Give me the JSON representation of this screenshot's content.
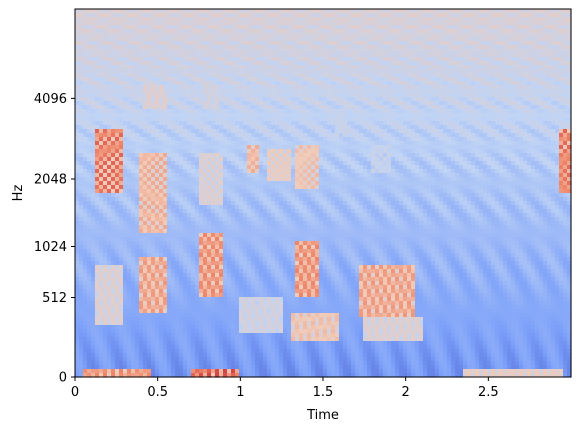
{
  "chart_data": {
    "type": "heatmap",
    "title": "",
    "xlabel": "Time",
    "ylabel": "Hz",
    "xlim": [
      0,
      3.0
    ],
    "y_scale": "mel",
    "ylim": [
      0,
      8192
    ],
    "x_ticks": [
      {
        "value": 0,
        "label": "0"
      },
      {
        "value": 0.5,
        "label": "0.5"
      },
      {
        "value": 1,
        "label": "1"
      },
      {
        "value": 1.5,
        "label": "1.5"
      },
      {
        "value": 2,
        "label": "2"
      },
      {
        "value": 2.5,
        "label": "2.5"
      }
    ],
    "y_ticks": [
      {
        "value": 0,
        "label": "0"
      },
      {
        "value": 512,
        "label": "512"
      },
      {
        "value": 1024,
        "label": "1024"
      },
      {
        "value": 2048,
        "label": "2048"
      },
      {
        "value": 4096,
        "label": "4096"
      }
    ],
    "colormap": [
      "#3b4cc0",
      "#7b9ff9",
      "#c0d4f5",
      "#f2cbb7",
      "#ee8468",
      "#b40426"
    ],
    "grid": false,
    "legend": "none",
    "energy_blobs": [
      {
        "t0": 0.12,
        "t1": 0.3,
        "f0": 1800,
        "f1": 3200,
        "level": 0.85
      },
      {
        "t0": 0.12,
        "t1": 0.3,
        "f0": 300,
        "f1": 800,
        "level": 0.55
      },
      {
        "t0": 0.38,
        "t1": 0.55,
        "f0": 1200,
        "f1": 2600,
        "level": 0.7
      },
      {
        "t0": 0.38,
        "t1": 0.55,
        "f0": 400,
        "f1": 900,
        "level": 0.75
      },
      {
        "t0": 0.42,
        "t1": 0.55,
        "f0": 3800,
        "f1": 4600,
        "level": 0.55
      },
      {
        "t0": 0.75,
        "t1": 0.9,
        "f0": 500,
        "f1": 1200,
        "level": 0.8
      },
      {
        "t0": 0.75,
        "t1": 0.9,
        "f0": 1600,
        "f1": 2600,
        "level": 0.55
      },
      {
        "t0": 0.78,
        "t1": 0.88,
        "f0": 3800,
        "f1": 4600,
        "level": 0.5
      },
      {
        "t0": 1.05,
        "t1": 1.12,
        "f0": 2200,
        "f1": 2800,
        "level": 0.7
      },
      {
        "t0": 1.0,
        "t1": 1.25,
        "f0": 250,
        "f1": 500,
        "level": 0.5
      },
      {
        "t0": 1.15,
        "t1": 1.3,
        "f0": 2000,
        "f1": 2700,
        "level": 0.6
      },
      {
        "t0": 1.32,
        "t1": 1.48,
        "f0": 500,
        "f1": 1100,
        "level": 0.8
      },
      {
        "t0": 1.32,
        "t1": 1.48,
        "f0": 1900,
        "f1": 2800,
        "level": 0.65
      },
      {
        "t0": 1.3,
        "t1": 1.6,
        "f0": 200,
        "f1": 400,
        "level": 0.65
      },
      {
        "t0": 1.58,
        "t1": 1.65,
        "f0": 3000,
        "f1": 3800,
        "level": 0.45
      },
      {
        "t0": 1.72,
        "t1": 2.05,
        "f0": 350,
        "f1": 800,
        "level": 0.75
      },
      {
        "t0": 1.8,
        "t1": 1.9,
        "f0": 2200,
        "f1": 2800,
        "level": 0.45
      },
      {
        "t0": 1.75,
        "t1": 2.1,
        "f0": 200,
        "f1": 350,
        "level": 0.55
      },
      {
        "t0": 2.92,
        "t1": 3.0,
        "f0": 1800,
        "f1": 3200,
        "level": 0.85
      },
      {
        "t0": 0.05,
        "t1": 0.45,
        "f0": 0,
        "f1": 40,
        "level": 0.8
      },
      {
        "t0": 0.7,
        "t1": 1.0,
        "f0": 0,
        "f1": 40,
        "level": 0.9
      },
      {
        "t0": 2.35,
        "t1": 2.95,
        "f0": 0,
        "f1": 40,
        "level": 0.6
      }
    ]
  }
}
